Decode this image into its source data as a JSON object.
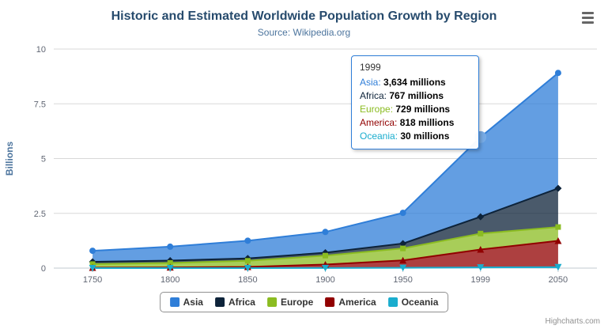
{
  "title": "Historic and Estimated Worldwide Population Growth by Region",
  "subtitle": "Source: Wikipedia.org",
  "credits": "Highcharts.com",
  "chart_data": {
    "type": "area",
    "stacked": true,
    "categories": [
      "1750",
      "1800",
      "1850",
      "1900",
      "1950",
      "1999",
      "2050"
    ],
    "ylabel": "Billions",
    "ylim": [
      0,
      10
    ],
    "yticks": [
      0,
      2.5,
      5,
      7.5,
      10
    ],
    "values_unit": "millions",
    "legend_position": "bottom",
    "grid": true,
    "series": [
      {
        "name": "Asia",
        "color": "#2f7ed8",
        "marker": "circle",
        "values": [
          502,
          635,
          809,
          947,
          1402,
          3634,
          5268
        ]
      },
      {
        "name": "Africa",
        "color": "#0d233a",
        "marker": "diamond",
        "values": [
          106,
          107,
          111,
          133,
          221,
          767,
          1766
        ]
      },
      {
        "name": "Europe",
        "color": "#8bbc21",
        "marker": "square",
        "values": [
          163,
          203,
          276,
          408,
          547,
          729,
          628
        ]
      },
      {
        "name": "America",
        "color": "#910000",
        "marker": "triangle",
        "values": [
          18,
          31,
          54,
          156,
          339,
          818,
          1201
        ]
      },
      {
        "name": "Oceania",
        "color": "#1aadce",
        "marker": "triangle-down",
        "values": [
          2,
          2,
          2,
          6,
          13,
          30,
          46
        ]
      }
    ]
  },
  "tooltip": {
    "header": "1999",
    "hover_category": "1999",
    "hover_series": "Asia",
    "border_color": "#2f7ed8",
    "rows": [
      {
        "name": "Asia",
        "color": "#2f7ed8",
        "value": "3,634 millions"
      },
      {
        "name": "Africa",
        "color": "#0d233a",
        "value": "767 millions"
      },
      {
        "name": "Europe",
        "color": "#8bbc21",
        "value": "729 millions"
      },
      {
        "name": "America",
        "color": "#910000",
        "value": "818 millions"
      },
      {
        "name": "Oceania",
        "color": "#1aadce",
        "value": "30 millions"
      }
    ]
  }
}
